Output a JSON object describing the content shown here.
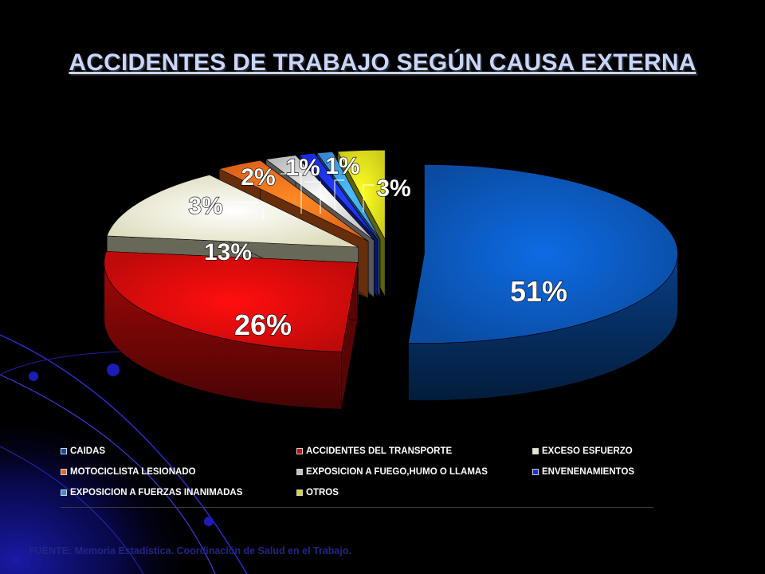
{
  "slide": {
    "title": "ACCIDENTES DE TRABAJO SEGÚN CAUSA EXTERNA",
    "source": "FUENTE: Memoria Estadística. Coordinación de Salud en el Trabajo."
  },
  "chart_data": {
    "type": "pie",
    "title": "ACCIDENTES DE TRABAJO SEGÚN CAUSA EXTERNA",
    "categories": [
      "CAIDAS",
      "ACCIDENTES DEL TRANSPORTE",
      "EXCESO ESFUERZO",
      "MOTOCICLISTA LESIONADO",
      "EXPOSICION A FUEGO,HUMO O LLAMAS",
      "ENVENENAMIENTOS",
      "EXPOSICION A FUERZAS INANIMADAS",
      "OTROS"
    ],
    "values": [
      51,
      26,
      13,
      3,
      2,
      1,
      1,
      3
    ],
    "labels": [
      "51%",
      "26%",
      "13%",
      "3%",
      "2%",
      "1%",
      "1%",
      "3%"
    ],
    "colors": [
      "#0a4fa8",
      "#c80a0a",
      "#e8e6c4",
      "#e8661a",
      "#c4c4c4",
      "#1a2ee8",
      "#3a8ee0",
      "#d8d81a"
    ],
    "legend_position": "bottom",
    "exploded": true,
    "three_d": true
  }
}
